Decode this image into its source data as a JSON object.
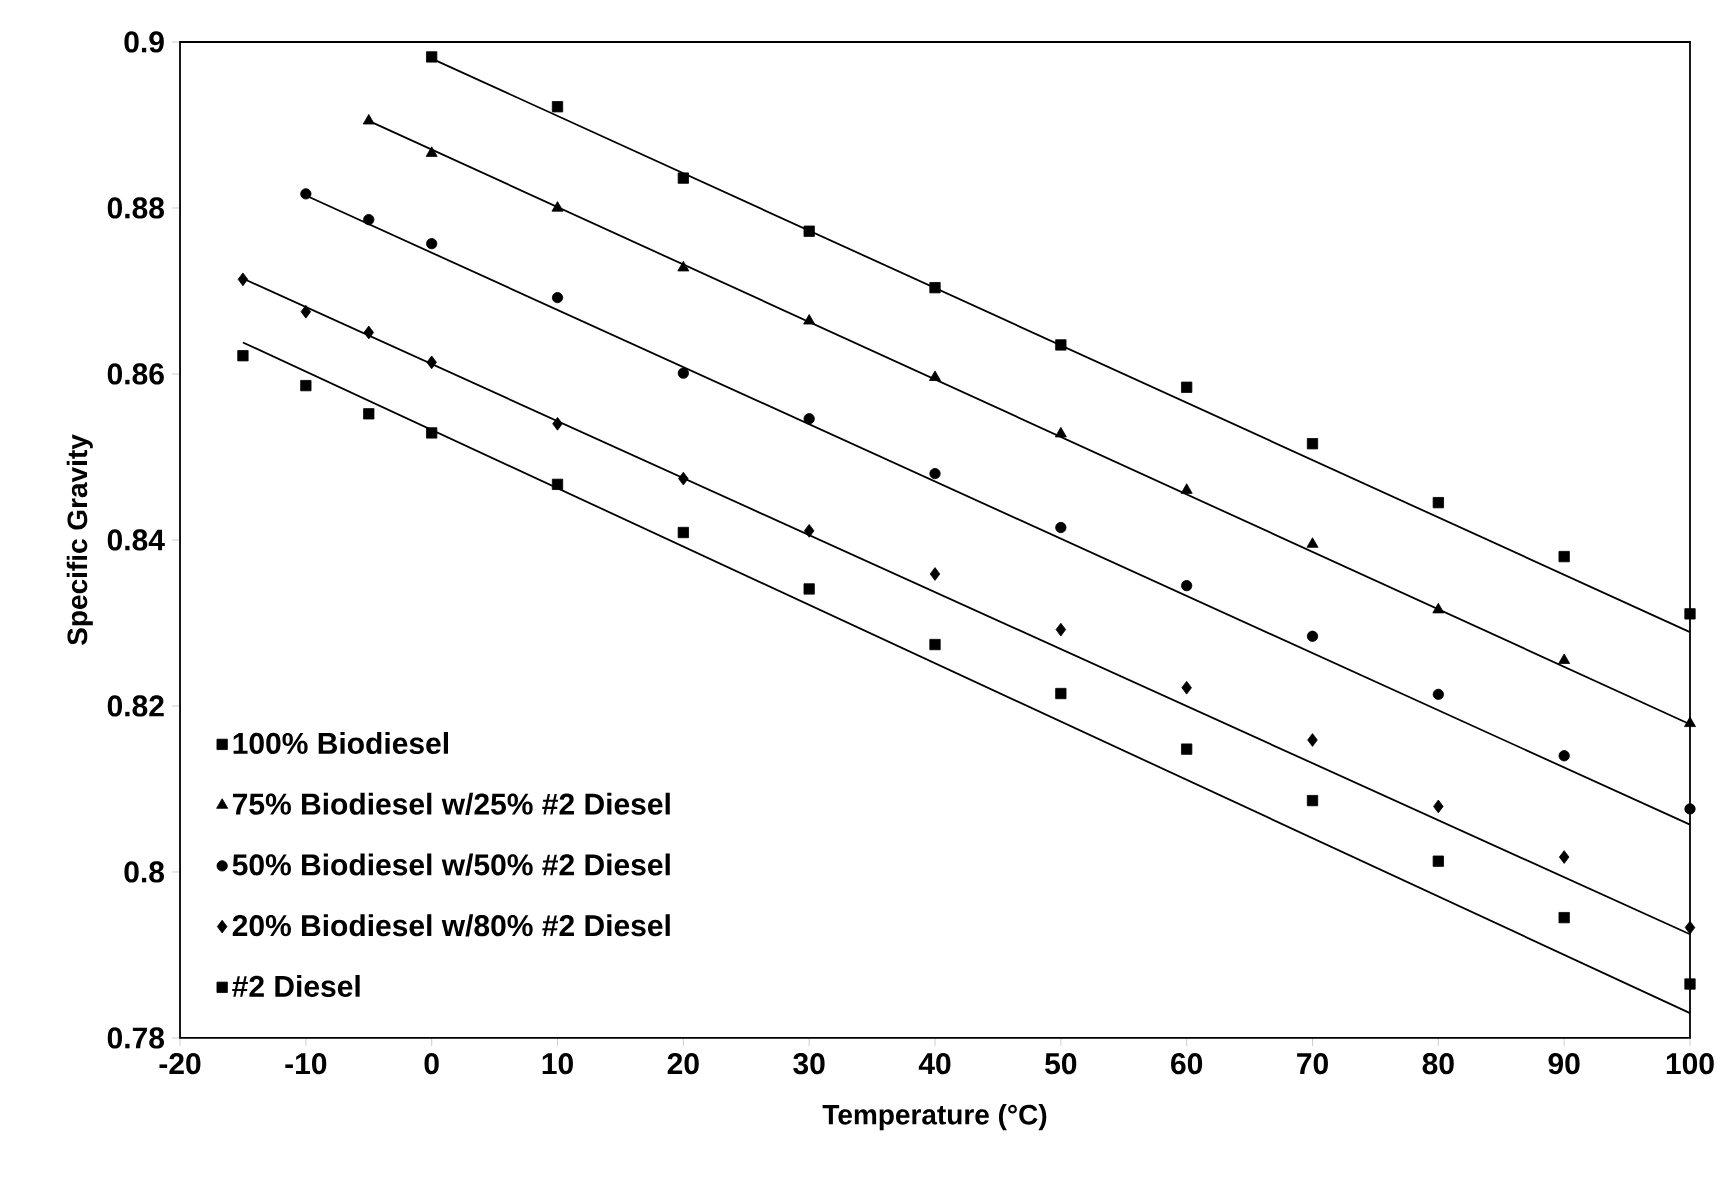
{
  "chart_data": {
    "type": "scatter",
    "xlabel": "Temperature (°C)",
    "ylabel": "Specific Gravity",
    "xlim": [
      -20,
      100
    ],
    "xticks": [
      -20,
      -10,
      0,
      10,
      20,
      30,
      40,
      50,
      60,
      70,
      80,
      90,
      100
    ],
    "ylim": [
      0.78,
      0.9
    ],
    "yticks": [
      0.78,
      0.8,
      0.82,
      0.84,
      0.86,
      0.88,
      0.9
    ],
    "grid": false,
    "legend": "bottom left",
    "series": [
      {
        "name": "100% Biodiesel",
        "color": "#000000",
        "marker": "square",
        "x": [
          0,
          10,
          20,
          30,
          40,
          50,
          60,
          70,
          80,
          90,
          100
        ],
        "values": [
          0.8982,
          0.8922,
          0.8836,
          0.8772,
          0.8704,
          0.8635,
          0.8584,
          0.8516,
          0.8445,
          0.838,
          0.8311
        ]
      },
      {
        "name": "75% Biodiesel w/25% #2 Diesel",
        "color": "#000000",
        "marker": "triangle",
        "x": [
          -5,
          0,
          10,
          20,
          30,
          40,
          50,
          60,
          70,
          80,
          90,
          100
        ],
        "values": [
          0.8905,
          0.8866,
          0.88,
          0.8728,
          0.8664,
          0.8596,
          0.8528,
          0.846,
          0.8395,
          0.8316,
          0.8255,
          0.8179
        ]
      },
      {
        "name": "50% Biodiesel w/50% #2 Diesel",
        "color": "#000000",
        "marker": "circle",
        "x": [
          -10,
          -5,
          0,
          10,
          20,
          30,
          40,
          50,
          60,
          70,
          80,
          90,
          100
        ],
        "values": [
          0.8817,
          0.8786,
          0.8757,
          0.8692,
          0.8601,
          0.8546,
          0.848,
          0.8415,
          0.8345,
          0.8284,
          0.8214,
          0.814,
          0.8076
        ]
      },
      {
        "name": "20% Biodiesel w/80% #2 Diesel",
        "color": "#000000",
        "marker": "diamond",
        "x": [
          -15,
          -10,
          -5,
          0,
          10,
          20,
          30,
          40,
          50,
          60,
          70,
          80,
          90,
          100
        ],
        "values": [
          0.8714,
          0.8675,
          0.865,
          0.8614,
          0.854,
          0.8474,
          0.8411,
          0.8359,
          0.8292,
          0.8222,
          0.8159,
          0.8079,
          0.8018,
          0.7933
        ]
      },
      {
        "name": "#2 Diesel",
        "color": "#000000",
        "marker": "square",
        "x": [
          -15,
          -10,
          -5,
          0,
          10,
          20,
          30,
          40,
          50,
          60,
          70,
          80,
          90,
          100
        ],
        "values": [
          0.8622,
          0.8586,
          0.8552,
          0.8529,
          0.8467,
          0.8409,
          0.8341,
          0.8274,
          0.8215,
          0.8148,
          0.8086,
          0.8013,
          0.7945,
          0.7865
        ]
      },
      {
        "type": "line",
        "color": "#000000",
        "marker": "none",
        "x": [
          0,
          100
        ],
        "values": [
          0.898,
          0.8289
        ]
      },
      {
        "type": "line",
        "color": "#000000",
        "marker": "none",
        "x": [
          -5,
          100
        ],
        "values": [
          0.8905,
          0.8178
        ]
      },
      {
        "type": "line",
        "color": "#000000",
        "marker": "none",
        "x": [
          -10,
          100
        ],
        "values": [
          0.8815,
          0.8057
        ]
      },
      {
        "type": "line",
        "color": "#000000",
        "marker": "none",
        "x": [
          -15,
          100
        ],
        "values": [
          0.8715,
          0.7925
        ]
      },
      {
        "type": "line",
        "color": "#000000",
        "marker": "none",
        "x": [
          -15,
          100
        ],
        "values": [
          0.8638,
          0.783
        ]
      }
    ]
  }
}
